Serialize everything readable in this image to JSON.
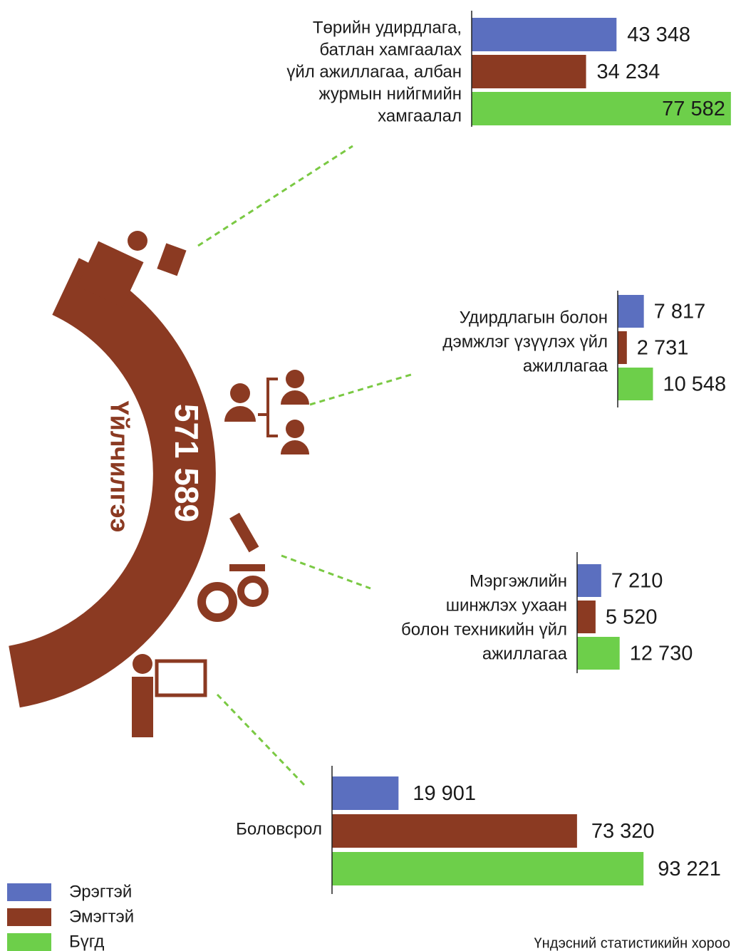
{
  "chart_data": [
    {
      "type": "bar",
      "label": [
        "Төрийн удирдлага,",
        "батлан хамгаалах",
        "үйл ажиллагаа, албан",
        "журмын нийгмийн",
        "хамгаалал"
      ],
      "series": [
        {
          "name": "Эрэгтэй",
          "color": "#5b6fbf",
          "values": [
            43348
          ],
          "value_labels": [
            "43 348"
          ]
        },
        {
          "name": "Эмэгтэй",
          "color": "#8b3a22",
          "values": [
            34234
          ],
          "value_labels": [
            "34 234"
          ]
        },
        {
          "name": "Бүгд",
          "color": "#6dcf4a",
          "values": [
            77582
          ],
          "value_labels": [
            "77 582"
          ]
        }
      ]
    },
    {
      "type": "bar",
      "label": [
        "Удирдлагын болон",
        "дэмжлэг үзүүлэх үйл",
        "ажиллагаа"
      ],
      "series": [
        {
          "name": "Эрэгтэй",
          "color": "#5b6fbf",
          "values": [
            7817
          ],
          "value_labels": [
            "7 817"
          ]
        },
        {
          "name": "Эмэгтэй",
          "color": "#8b3a22",
          "values": [
            2731
          ],
          "value_labels": [
            "2 731"
          ]
        },
        {
          "name": "Бүгд",
          "color": "#6dcf4a",
          "values": [
            10548
          ],
          "value_labels": [
            "10 548"
          ]
        }
      ]
    },
    {
      "type": "bar",
      "label": [
        "Мэргэжлийн",
        "шинжлэх ухаан",
        "болон техникийн үйл",
        "ажиллагаа"
      ],
      "series": [
        {
          "name": "Эрэгтэй",
          "color": "#5b6fbf",
          "values": [
            7210
          ],
          "value_labels": [
            "7 210"
          ]
        },
        {
          "name": "Эмэгтэй",
          "color": "#8b3a22",
          "values": [
            5520
          ],
          "value_labels": [
            "5 520"
          ]
        },
        {
          "name": "Бүгд",
          "color": "#6dcf4a",
          "values": [
            12730
          ],
          "value_labels": [
            "12 730"
          ]
        }
      ]
    },
    {
      "type": "bar",
      "label": [
        "Боловсрол"
      ],
      "series": [
        {
          "name": "Эрэгтэй",
          "color": "#5b6fbf",
          "values": [
            19901
          ],
          "value_labels": [
            "19 901"
          ]
        },
        {
          "name": "Эмэгтэй",
          "color": "#8b3a22",
          "values": [
            73320
          ],
          "value_labels": [
            "73 320"
          ]
        },
        {
          "name": "Бүгд",
          "color": "#6dcf4a",
          "values": [
            93221
          ],
          "value_labels": [
            "93 221"
          ]
        }
      ]
    }
  ],
  "total": {
    "value": 571589,
    "label": "571 589",
    "name": "Үйлчилгээ"
  },
  "source": "Үндэсний статистикийн хороо"
}
